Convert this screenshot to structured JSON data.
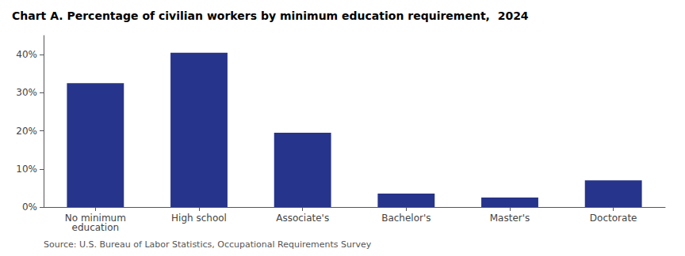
{
  "chart_data": {
    "type": "bar",
    "title": "Chart A. Percentage of civilian workers by minimum education requirement,  2024",
    "categories": [
      "No minimum\neducation",
      "High school",
      "Associate's",
      "Bachelor's",
      "Master's",
      "Doctorate"
    ],
    "values": [
      32.5,
      40.5,
      19.5,
      3.5,
      2.5,
      7.0
    ],
    "color": "#27348b",
    "ylim": [
      0,
      45
    ],
    "yticks": [
      {
        "value": 0,
        "label": "0%"
      },
      {
        "value": 10,
        "label": "10%"
      },
      {
        "value": 20,
        "label": "20%"
      },
      {
        "value": 30,
        "label": "30%"
      },
      {
        "value": 40,
        "label": "40%"
      }
    ],
    "grid": false,
    "annotation": "Source: U.S. Bureau of Labor Statistics, Occupational Requirements Survey"
  }
}
